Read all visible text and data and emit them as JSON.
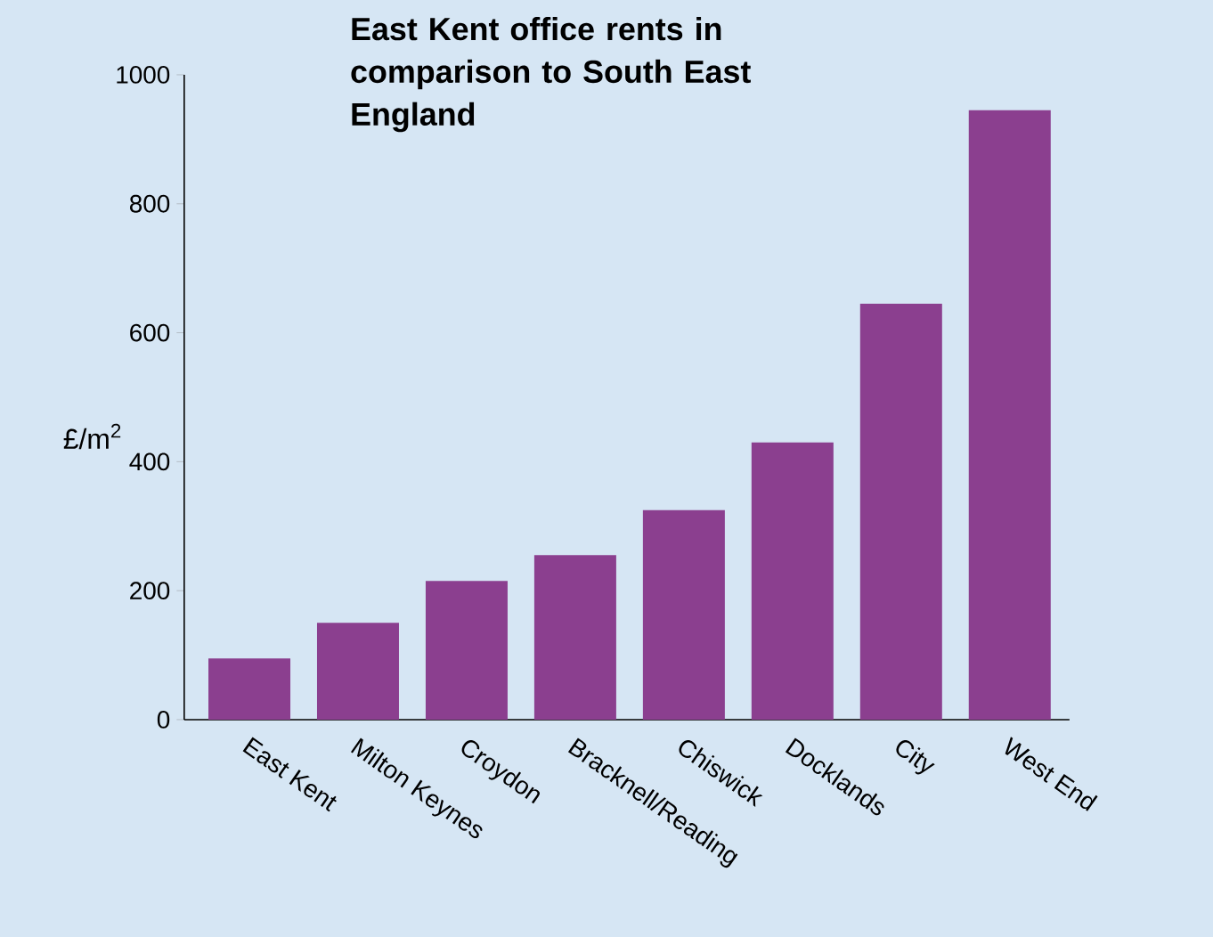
{
  "chart_data": {
    "type": "bar",
    "title": "East Kent office rents in comparison to South East England",
    "ylabel": "£/m$^{2}$",
    "categories": [
      "East Kent",
      "Milton Keynes",
      "Croydon",
      "Bracknell/Reading",
      "Chiswick",
      "Docklands",
      "City",
      "West End"
    ],
    "values": [
      95,
      150,
      215,
      255,
      325,
      430,
      645,
      945
    ],
    "color": "#8b3f8f",
    "ylim": [
      0,
      1000
    ],
    "yticks": [
      0,
      200,
      400,
      600,
      800,
      1000
    ]
  }
}
